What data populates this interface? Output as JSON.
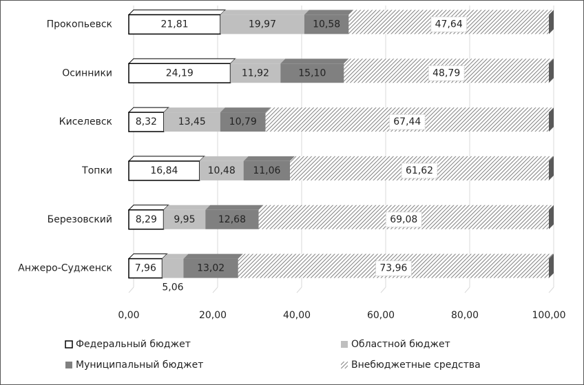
{
  "chart_data": {
    "type": "stacked_bar_horizontal",
    "categories": [
      "Прокопьевск",
      "Осинники",
      "Киселевск",
      "Топки",
      "Березовский",
      "Анжеро-Судженск"
    ],
    "series": [
      {
        "name": "Федеральный бюджет",
        "color": "#ffffff",
        "values": [
          21.81,
          24.19,
          8.32,
          16.84,
          8.29,
          7.96
        ],
        "value_labels": [
          "21,81",
          "24,19",
          "8,32",
          "16,84",
          "8,29",
          "7,96"
        ]
      },
      {
        "name": "Областной бюджет",
        "color": "#bfbfbf",
        "values": [
          19.97,
          11.92,
          13.45,
          10.48,
          9.95,
          5.06
        ],
        "value_labels": [
          "19,97",
          "11,92",
          "13,45",
          "10,48",
          "9,95",
          "5,06"
        ]
      },
      {
        "name": "Муниципальный бюджет",
        "color": "#808080",
        "values": [
          10.58,
          15.1,
          10.79,
          11.06,
          12.68,
          13.02
        ],
        "value_labels": [
          "10,58",
          "15,10",
          "10,79",
          "11,06",
          "12,68",
          "13,02"
        ]
      },
      {
        "name": "Внебюджетные средства",
        "color": "#7f7f7f",
        "pattern": "hatch",
        "values": [
          47.64,
          48.79,
          67.44,
          61.62,
          69.08,
          73.96
        ],
        "value_labels": [
          "47,64",
          "48,79",
          "67,44",
          "61,62",
          "69,08",
          "73,96"
        ]
      }
    ],
    "xlim": [
      0,
      100
    ],
    "xticks": [
      {
        "value": 0,
        "label": "0,00"
      },
      {
        "value": 20,
        "label": "20,00"
      },
      {
        "value": 40,
        "label": "40,00"
      },
      {
        "value": 60,
        "label": "60,00"
      },
      {
        "value": 80,
        "label": "80,00"
      },
      {
        "value": 100,
        "label": "100,00"
      }
    ],
    "grid": true
  }
}
